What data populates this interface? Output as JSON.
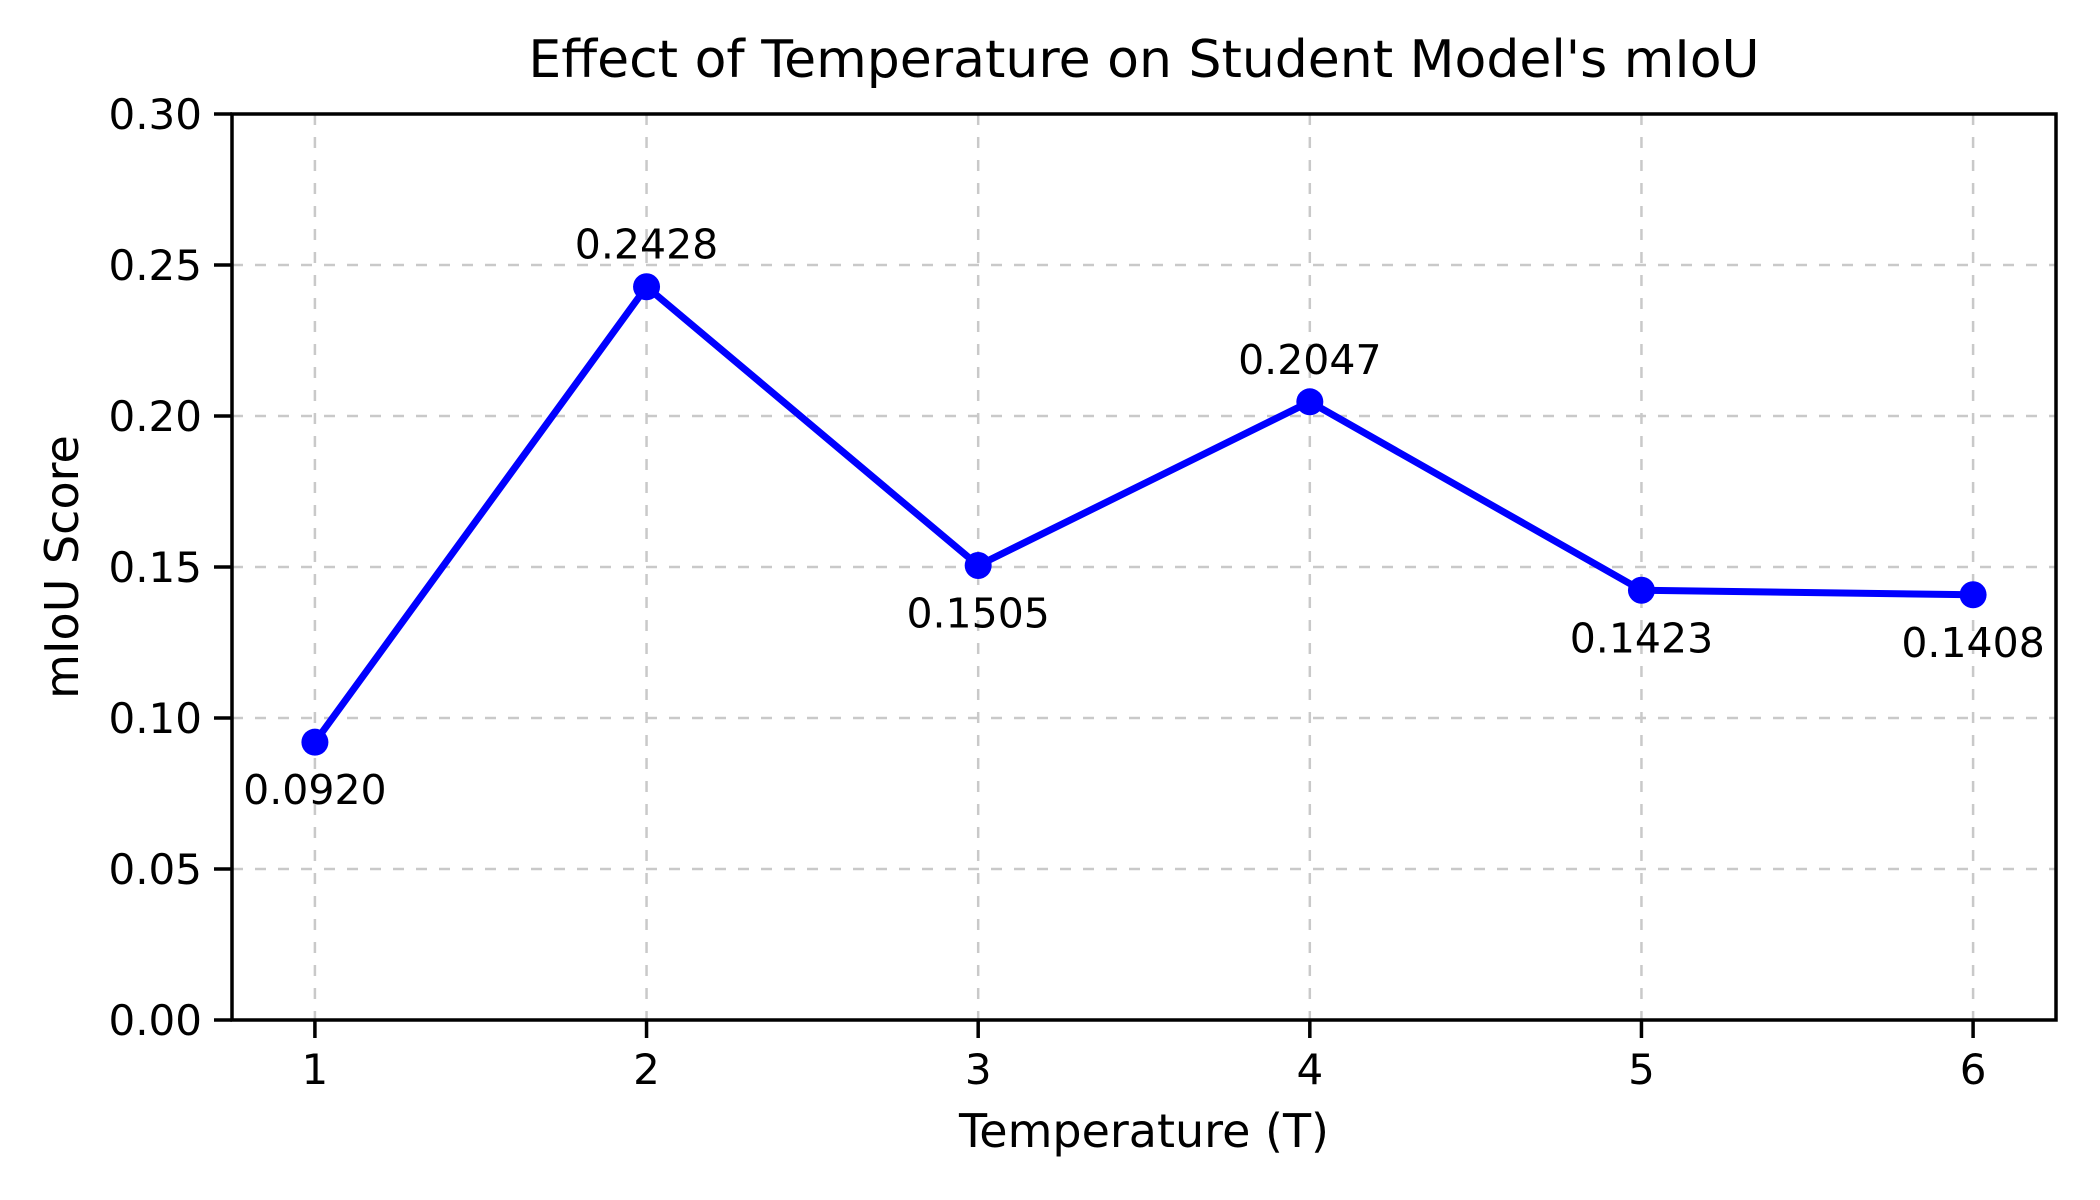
{
  "chart_data": {
    "type": "line",
    "title": "Effect of Temperature on Student Model's mIoU",
    "xlabel": "Temperature (T)",
    "ylabel": "mIoU Score",
    "x": [
      1,
      2,
      3,
      4,
      5,
      6
    ],
    "y": [
      0.092,
      0.2428,
      0.1505,
      0.2047,
      0.1423,
      0.1408
    ],
    "point_labels": [
      "0.0920",
      "0.2428",
      "0.1505",
      "0.2047",
      "0.1423",
      "0.1408"
    ],
    "point_label_positions": [
      "below",
      "above",
      "below",
      "above",
      "below",
      "below"
    ],
    "xlim": [
      0.75,
      6.25
    ],
    "ylim": [
      0.0,
      0.3
    ],
    "xticks": [
      1,
      2,
      3,
      4,
      5,
      6
    ],
    "xtick_labels": [
      "1",
      "2",
      "3",
      "4",
      "5",
      "6"
    ],
    "yticks": [
      0.0,
      0.05,
      0.1,
      0.15,
      0.2,
      0.25,
      0.3
    ],
    "ytick_labels": [
      "0.00",
      "0.05",
      "0.10",
      "0.15",
      "0.20",
      "0.25",
      "0.30"
    ],
    "grid": true,
    "legend": "none",
    "line_color": "#0000ff",
    "marker": "circle",
    "grid_color": "#c9c9c9",
    "spine_color": "#000000",
    "text_color": "#000000",
    "background": "#ffffff"
  }
}
